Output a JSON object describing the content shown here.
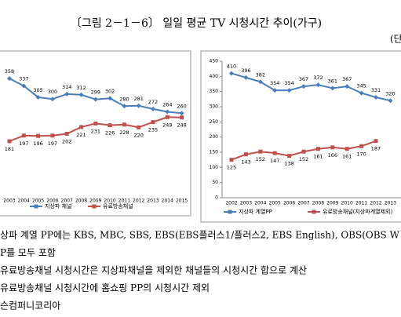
{
  "title": "〔그림 2－1－6〕 일일 평균 TV 시청시간 추이(가구)",
  "unit_fragment": "(단",
  "chart_data": [
    {
      "type": "line",
      "categories": [
        "2003",
        "2004",
        "2005",
        "2006",
        "2007",
        "2008",
        "2009",
        "2010",
        "2011",
        "2012",
        "2013",
        "2014",
        "2015"
      ],
      "series": [
        {
          "name": "지상파 채널",
          "color": "#4a7ebb",
          "values": [
            358,
            337,
            305,
            300,
            314,
            312,
            299,
            302,
            280,
            281,
            272,
            264,
            260
          ]
        },
        {
          "name": "유료방송채널",
          "color": "#c0504d",
          "values": [
            181,
            197,
            196,
            197,
            202,
            221,
            231,
            226,
            228,
            220,
            235,
            249,
            248
          ]
        }
      ]
    },
    {
      "type": "line",
      "categories": [
        "2002",
        "2003",
        "2004",
        "2005",
        "2006",
        "2007",
        "2008",
        "2009",
        "2010",
        "2011",
        "2012",
        "2013"
      ],
      "ylim": [
        0,
        450
      ],
      "yticks": [
        0,
        50,
        100,
        150,
        200,
        250,
        300,
        350,
        400,
        450
      ],
      "series": [
        {
          "name": "지상파 계열PP",
          "color": "#4a7ebb",
          "values": [
            410,
            396,
            382,
            354,
            354,
            367,
            372,
            361,
            367,
            345,
            331,
            320
          ]
        },
        {
          "name": "유료방송채널(지상파계열제외)",
          "color": "#c0504d",
          "values": [
            125,
            143,
            152,
            147,
            138,
            152,
            161,
            166,
            161,
            170,
            187,
            null
          ]
        }
      ]
    }
  ],
  "notes": [
    "상파 계열 PP에는 KBS, MBC, SBS, EBS(EBS플러스1/플러스2, EBS English), OBS(OBS W",
    "P를 모두 포함",
    "유료방송채널 시청시간은 지상파채널을 제외한 채널들의 시청시간 합으로 계산",
    "유료방송채널 시청시간에 홈쇼핑 PP의 시청시간 제외",
    "슨컴퍼니코리아"
  ]
}
